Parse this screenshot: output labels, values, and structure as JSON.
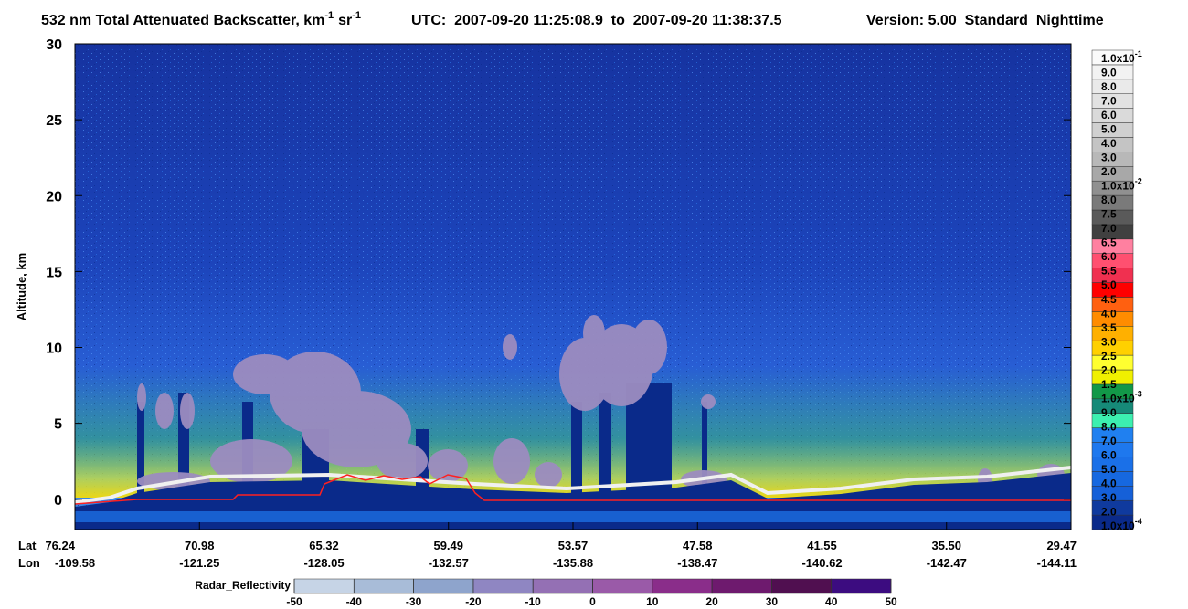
{
  "chart_data": {
    "type": "curtain",
    "title": [
      "532 nm Total Attenuated Backscatter, km",
      "-1",
      "sr",
      "-1"
    ],
    "utc": "UTC:  2007-09-20 11:25:08.9  to  2007-09-20 11:38:37.5",
    "version": "Version: 5.00  Standard  Nighttime",
    "ylabel": "Altitude, km",
    "ylim": [
      -2,
      30
    ],
    "yticks": [
      0,
      5,
      10,
      15,
      20,
      25,
      30
    ],
    "x_rows": [
      {
        "name": "Lat",
        "labels": [
          "76.24",
          "70.98",
          "65.32",
          "59.49",
          "53.57",
          "47.58",
          "41.55",
          "35.50",
          "29.47"
        ]
      },
      {
        "name": "Lon",
        "labels": [
          "-109.58",
          "-121.25",
          "-128.05",
          "-132.57",
          "-135.88",
          "-138.47",
          "-140.62",
          "-142.47",
          "-144.11"
        ]
      }
    ],
    "colorbar": {
      "labels": [
        {
          "text": "1.0x10",
          "sup": "-4"
        },
        "2.0",
        "3.0",
        "4.0",
        "5.0",
        "6.0",
        "7.0",
        "8.0",
        "9.0",
        {
          "text": "1.0x10",
          "sup": "-3"
        },
        "1.5",
        "2.0",
        "2.5",
        "3.0",
        "3.5",
        "4.0",
        "4.5",
        "5.0",
        "5.5",
        "6.0",
        "6.5",
        "7.0",
        "7.5",
        "8.0",
        {
          "text": "1.0x10",
          "sup": "-2"
        },
        "2.0",
        "3.0",
        "4.0",
        "5.0",
        "6.0",
        "7.0",
        "8.0",
        "9.0",
        {
          "text": "1.0x10",
          "sup": "-1"
        }
      ],
      "colors": [
        "#0a2a8a",
        "#0f3a9e",
        "#1560d8",
        "#1668e0",
        "#1a70e8",
        "#1e78ee",
        "#2080f0",
        "#3cf0b0",
        "#168a78",
        "#129848",
        "#f0f000",
        "#ffff30",
        "#ffd000",
        "#ffb000",
        "#ff8c00",
        "#ff6010",
        "#ff0000",
        "#f03050",
        "#ff5070",
        "#ff80a0",
        "#404040",
        "#5a5a5a",
        "#7a7a7a",
        "#909090",
        "#a8a8a8",
        "#b8b8b8",
        "#c4c4c4",
        "#d0d0d0",
        "#dadada",
        "#e2e2e2",
        "#eaeaea",
        "#f2f2f2",
        "#fafafa"
      ]
    },
    "radar_colorbar": {
      "label": "Radar_Reflectivity",
      "xlim": [
        -50,
        50
      ],
      "ticks": [
        -50,
        -40,
        -30,
        -20,
        -10,
        0,
        10,
        20,
        30,
        40,
        50
      ],
      "colors": [
        "#c6d4e6",
        "#a8bcd8",
        "#8ea4cc",
        "#8f86c2",
        "#9470b4",
        "#9a5aa8",
        "#8a2d8a",
        "#6e1a6e",
        "#500f50",
        "#3c0c80"
      ]
    }
  }
}
